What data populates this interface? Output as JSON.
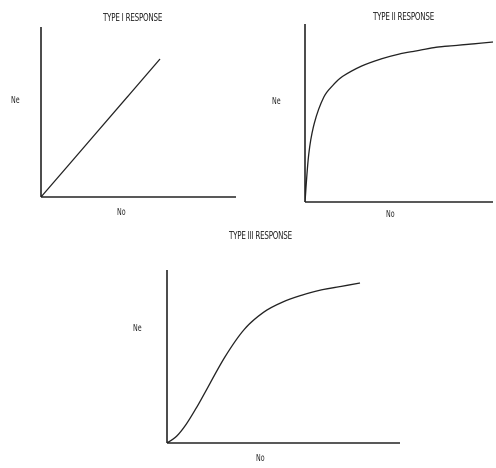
{
  "chart_data": [
    {
      "type": "line",
      "title": "TYPE I RESPONSE",
      "xlabel": "No",
      "ylabel": "Ne",
      "shape": "linear",
      "x": [
        0,
        0.25,
        0.5,
        0.75,
        1.0
      ],
      "y": [
        0,
        0.25,
        0.5,
        0.75,
        1.0
      ],
      "grid": false,
      "legend": "none"
    },
    {
      "type": "line",
      "title": "TYPE II   RESPONSE",
      "xlabel": "No",
      "ylabel": "Ne",
      "shape": "saturating",
      "x": [
        0,
        0.02,
        0.05,
        0.1,
        0.15,
        0.2,
        0.3,
        0.4,
        0.5,
        0.6,
        0.7,
        0.8,
        0.9,
        1.0
      ],
      "y": [
        0,
        0.28,
        0.46,
        0.61,
        0.68,
        0.73,
        0.79,
        0.83,
        0.86,
        0.88,
        0.9,
        0.91,
        0.92,
        0.93
      ],
      "grid": false,
      "legend": "none"
    },
    {
      "type": "line",
      "title": "TYPE III   RESPONSE",
      "xlabel": "No",
      "ylabel": "Ne",
      "shape": "sigmoid",
      "x": [
        0,
        0.05,
        0.1,
        0.15,
        0.2,
        0.3,
        0.4,
        0.5,
        0.6,
        0.7,
        0.8,
        0.9,
        1.0
      ],
      "y": [
        0,
        0.04,
        0.11,
        0.2,
        0.3,
        0.5,
        0.66,
        0.76,
        0.82,
        0.86,
        0.89,
        0.91,
        0.93
      ],
      "grid": false,
      "legend": "none"
    }
  ]
}
